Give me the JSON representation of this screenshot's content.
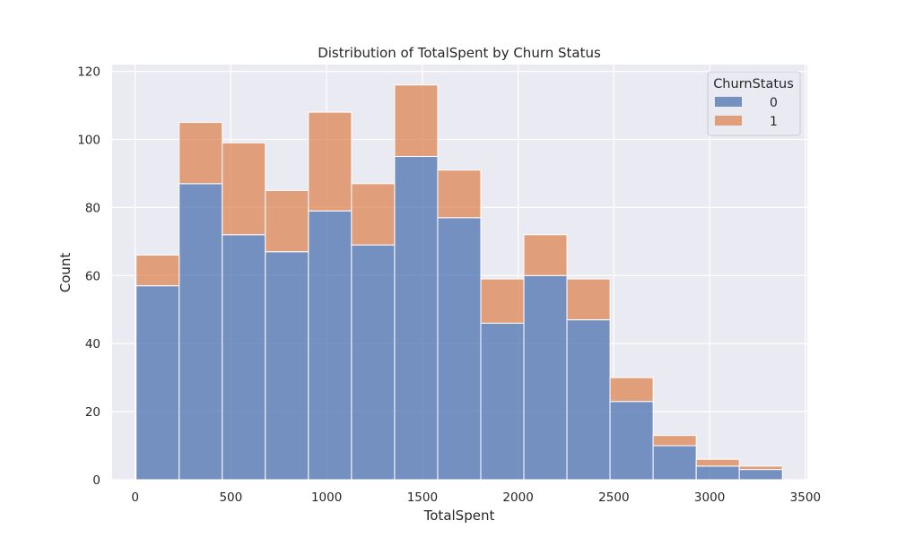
{
  "chart_data": {
    "type": "bar",
    "stacked": true,
    "title": "Distribution of TotalSpent by Churn Status",
    "xlabel": "TotalSpent",
    "ylabel": "Count",
    "xlim": [
      -120,
      3510
    ],
    "ylim": [
      0,
      122
    ],
    "xticks": [
      0,
      500,
      1000,
      1500,
      2000,
      2500,
      3000,
      3500
    ],
    "yticks": [
      0,
      20,
      40,
      60,
      80,
      100,
      120
    ],
    "bin_edges": [
      5,
      230,
      455,
      680,
      905,
      1130,
      1355,
      1580,
      1805,
      2030,
      2255,
      2480,
      2705,
      2930,
      3155,
      3380
    ],
    "series": [
      {
        "name": "0",
        "color": "#4c72b0",
        "values": [
          57,
          87,
          72,
          67,
          79,
          69,
          95,
          77,
          46,
          60,
          47,
          23,
          10,
          4,
          3
        ]
      },
      {
        "name": "1",
        "color": "#dd8452",
        "values": [
          9,
          18,
          27,
          18,
          29,
          18,
          21,
          14,
          13,
          12,
          12,
          7,
          3,
          2,
          1
        ]
      }
    ],
    "grid": true,
    "legend": {
      "title": "ChurnStatus",
      "position": "top-right"
    },
    "background": "#eaeaf2"
  }
}
